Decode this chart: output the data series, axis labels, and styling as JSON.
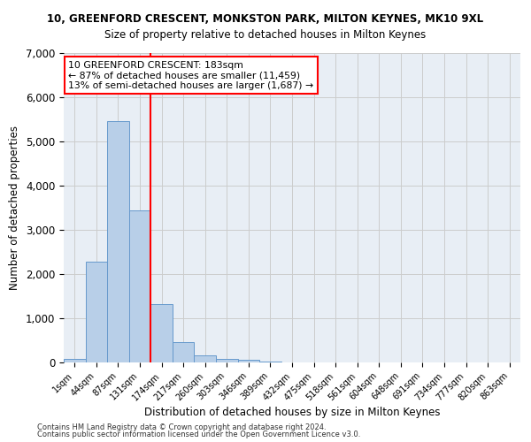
{
  "title1": "10, GREENFORD CRESCENT, MONKSTON PARK, MILTON KEYNES, MK10 9XL",
  "title2": "Size of property relative to detached houses in Milton Keynes",
  "xlabel": "Distribution of detached houses by size in Milton Keynes",
  "ylabel": "Number of detached properties",
  "categories": [
    "1sqm",
    "44sqm",
    "87sqm",
    "131sqm",
    "174sqm",
    "217sqm",
    "260sqm",
    "303sqm",
    "346sqm",
    "389sqm",
    "432sqm",
    "475sqm",
    "518sqm",
    "561sqm",
    "604sqm",
    "648sqm",
    "691sqm",
    "734sqm",
    "777sqm",
    "820sqm",
    "863sqm"
  ],
  "bar_heights": [
    80,
    2280,
    5470,
    3450,
    1320,
    470,
    160,
    90,
    55,
    30,
    0,
    0,
    0,
    0,
    0,
    0,
    0,
    0,
    0,
    0,
    0
  ],
  "bar_color": "#b8cfe8",
  "bar_edge_color": "#6699cc",
  "vline_color": "red",
  "vline_pos": 3.5,
  "annotation_text_line1": "10 GREENFORD CRESCENT: 183sqm",
  "annotation_text_line2": "← 87% of detached houses are smaller (11,459)",
  "annotation_text_line3": "13% of semi-detached houses are larger (1,687) →",
  "annotation_box_color": "white",
  "annotation_box_edge_color": "red",
  "ylim": [
    0,
    7000
  ],
  "yticks": [
    0,
    1000,
    2000,
    3000,
    4000,
    5000,
    6000,
    7000
  ],
  "grid_color": "#cccccc",
  "background_color": "#e8eef5",
  "footer1": "Contains HM Land Registry data © Crown copyright and database right 2024.",
  "footer2": "Contains public sector information licensed under the Open Government Licence v3.0."
}
